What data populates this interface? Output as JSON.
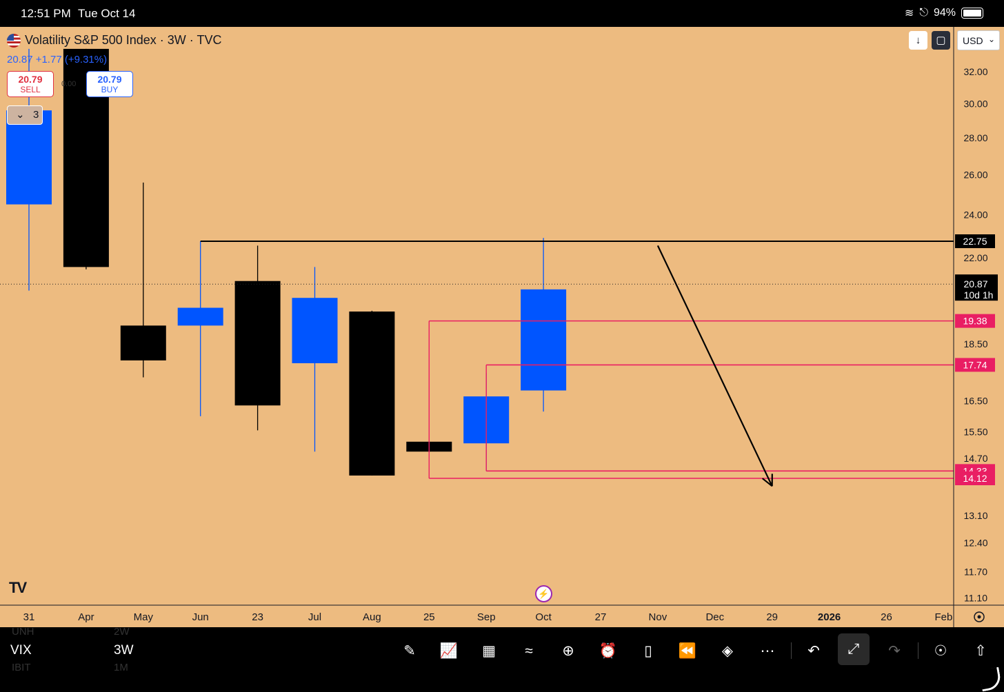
{
  "status_bar": {
    "time": "12:51 PM",
    "date": "Tue Oct 14",
    "battery": "94%"
  },
  "header": {
    "title": "Volatility S&P 500 Index · 3W · TVC",
    "change": "20.87  +1.77 (+9.31%)",
    "sell_price": "20.79",
    "sell_label": "SELL",
    "buy_price": "20.79",
    "buy_label": "BUY",
    "spread": "0.00",
    "collapsed_count": "3",
    "currency": "USD"
  },
  "chart_data": {
    "type": "candlestick",
    "title": "Volatility S&P 500 Index · 3W · TVC",
    "x_labels": [
      {
        "label": "31",
        "bold": false
      },
      {
        "label": "Apr",
        "bold": false
      },
      {
        "label": "May",
        "bold": false
      },
      {
        "label": "Jun",
        "bold": false
      },
      {
        "label": "23",
        "bold": false
      },
      {
        "label": "Jul",
        "bold": false
      },
      {
        "label": "Aug",
        "bold": false
      },
      {
        "label": "25",
        "bold": false
      },
      {
        "label": "Sep",
        "bold": false
      },
      {
        "label": "Oct",
        "bold": false
      },
      {
        "label": "27",
        "bold": false
      },
      {
        "label": "Nov",
        "bold": false
      },
      {
        "label": "Dec",
        "bold": false
      },
      {
        "label": "29",
        "bold": false
      },
      {
        "label": "2026",
        "bold": true
      },
      {
        "label": "26",
        "bold": false
      },
      {
        "label": "Feb",
        "bold": false
      }
    ],
    "y_ticks": [
      "32.00",
      "30.00",
      "28.00",
      "26.00",
      "24.00",
      "22.00",
      "18.50",
      "16.50",
      "15.50",
      "14.70",
      "13.10",
      "12.40",
      "11.70",
      "11.10"
    ],
    "y_tick_values": [
      32.0,
      30.0,
      28.0,
      26.0,
      24.0,
      22.0,
      18.5,
      16.5,
      15.5,
      14.7,
      13.1,
      12.4,
      11.7,
      11.1
    ],
    "ylim": [
      11.0,
      33.5
    ],
    "scale": "log",
    "candles": [
      {
        "index": 0,
        "open": 29.6,
        "high": 33.5,
        "low": 20.6,
        "close": 24.5,
        "color": "blue"
      },
      {
        "index": 1,
        "open": 33.5,
        "high": 33.5,
        "low": 21.5,
        "close": 21.6,
        "color": "black"
      },
      {
        "index": 2,
        "open": 19.2,
        "high": 25.6,
        "low": 17.3,
        "close": 17.9,
        "color": "black"
      },
      {
        "index": 3,
        "open": 19.2,
        "high": 22.75,
        "low": 16.0,
        "close": 19.9,
        "color": "blue"
      },
      {
        "index": 4,
        "open": 21.0,
        "high": 22.55,
        "low": 15.55,
        "close": 16.35,
        "color": "black"
      },
      {
        "index": 5,
        "open": 17.8,
        "high": 21.6,
        "low": 14.9,
        "close": 20.3,
        "color": "blue"
      },
      {
        "index": 6,
        "open": 19.75,
        "high": 19.78,
        "low": 14.2,
        "close": 14.2,
        "color": "black"
      },
      {
        "index": 7,
        "open": 15.2,
        "high": 15.2,
        "low": 14.9,
        "close": 14.9,
        "color": "black"
      },
      {
        "index": 8,
        "open": 15.15,
        "high": 17.45,
        "low": 14.33,
        "close": 16.65,
        "color": "blue"
      },
      {
        "index": 9,
        "open": 16.85,
        "high": 22.9,
        "low": 16.15,
        "close": 20.65,
        "color": "blue"
      }
    ],
    "levels": [
      {
        "value": 22.75,
        "label": "22.75",
        "color": "#000000",
        "from_index": 3
      },
      {
        "value": 19.38,
        "label": "19.38",
        "color": "#E91E63",
        "from_index": 7
      },
      {
        "value": 17.74,
        "label": "17.74",
        "color": "#E91E63",
        "from_index": 8
      },
      {
        "value": 14.33,
        "label": "14.33",
        "color": "#E91E63",
        "from_index": 8
      },
      {
        "value": 14.12,
        "label": "14.12",
        "color": "#E91E63",
        "from_index": 7
      }
    ],
    "current_price": {
      "value": 20.87,
      "label": "20.87",
      "countdown": "10d 1h"
    },
    "arrow": {
      "from_index": 11,
      "from_value": 22.55,
      "to_index": 13,
      "to_value": 13.9
    }
  },
  "bottom_bar": {
    "symbol": "VIX",
    "interval": "3W",
    "ghost_symbol_above": "UNH",
    "ghost_interval_above": "2W",
    "ghost_symbol_below": "IBIT",
    "ghost_interval_below": "1M"
  },
  "colors": {
    "background": "#EDBB80",
    "bull": "#0055FF",
    "bear": "#000000",
    "level_red": "#E91E63"
  }
}
